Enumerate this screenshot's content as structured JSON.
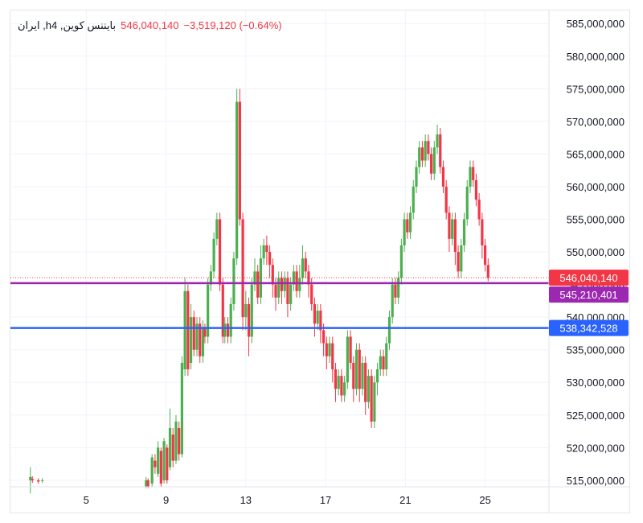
{
  "legend": {
    "symbol": "ایران ,hبایننس کوین, 4",
    "last_price": "546,040,140",
    "change": "−3,519,120 (−0.64%)"
  },
  "colors": {
    "up": "#4caf50",
    "down": "#f23645",
    "purple_line": "#9c27b0",
    "blue_line": "#2962ff",
    "last_price_tag": "#f23645",
    "grid": "#f0f3fa"
  },
  "chart_data": {
    "type": "candlestick",
    "y_axis": {
      "min": 514000000,
      "max": 587000000,
      "ticks": [
        515000000,
        520000000,
        525000000,
        530000000,
        535000000,
        540000000,
        545000000,
        550000000,
        555000000,
        560000000,
        565000000,
        570000000,
        575000000,
        580000000,
        585000000
      ],
      "tick_labels": [
        "515,000,000",
        "520,000,000",
        "525,000,000",
        "530,000,000",
        "535,000,000",
        "540,000,000",
        "545,000,000",
        "550,000,000",
        "555,000,000",
        "560,000,000",
        "565,000,000",
        "570,000,000",
        "575,000,000",
        "580,000,000",
        "585,000,000"
      ]
    },
    "x_axis": {
      "min": 1.2,
      "max": 28.2,
      "ticks": [
        5,
        9,
        13,
        17,
        21,
        25
      ],
      "tick_labels": [
        "5",
        "9",
        "13",
        "17",
        "21",
        "25"
      ]
    },
    "price_lines": [
      {
        "name": "last",
        "value": 546040140,
        "label": "546,040,140",
        "color": "#f23645",
        "style": "dotted"
      },
      {
        "name": "purple",
        "value": 545210401,
        "label": "545,210,401",
        "color": "#9c27b0",
        "style": "solid"
      },
      {
        "name": "blue",
        "value": 538342528,
        "label": "538,342,528",
        "color": "#2962ff",
        "style": "solid"
      }
    ],
    "candles": [
      [
        2.2,
        515.0,
        515.5,
        513.0,
        517.0
      ],
      [
        2.3,
        515.2,
        515.0,
        514.6,
        515.6
      ],
      [
        2.6,
        515.0,
        514.8,
        514.5,
        515.3
      ],
      [
        2.8,
        514.9,
        515.0,
        514.6,
        515.3
      ],
      [
        8.0,
        514.0,
        515.0,
        513.8,
        515.5
      ],
      [
        8.1,
        515.0,
        514.0,
        513.8,
        515.3
      ],
      [
        8.3,
        514.5,
        518.5,
        514.0,
        519.0
      ],
      [
        8.45,
        518.0,
        517.0,
        516.0,
        519.0
      ],
      [
        8.6,
        516.0,
        520.0,
        515.5,
        521.0
      ],
      [
        8.75,
        519.5,
        514.5,
        514.0,
        520.0
      ],
      [
        8.9,
        515.0,
        521.0,
        514.5,
        521.5
      ],
      [
        9.05,
        520.0,
        515.0,
        514.5,
        520.5
      ],
      [
        9.2,
        517.0,
        523.0,
        516.5,
        526.0
      ],
      [
        9.35,
        522.0,
        518.0,
        517.0,
        523.0
      ],
      [
        9.5,
        518.0,
        524.0,
        517.5,
        525.0
      ],
      [
        9.65,
        523.0,
        519.0,
        518.0,
        524.0
      ],
      [
        9.8,
        519.0,
        533.0,
        518.5,
        534.0
      ],
      [
        9.95,
        532.0,
        544.0,
        531.0,
        546.0
      ],
      [
        10.1,
        544.0,
        532.0,
        531.0,
        545.0
      ],
      [
        10.25,
        533.0,
        540.0,
        532.0,
        542.0
      ],
      [
        10.4,
        540.0,
        535.0,
        534.0,
        541.0
      ],
      [
        10.55,
        535.0,
        539.0,
        534.0,
        540.0
      ],
      [
        10.7,
        539.0,
        534.0,
        533.0,
        540.0
      ],
      [
        10.85,
        534.0,
        538.5,
        533.0,
        539.5
      ],
      [
        10.95,
        538.5,
        537.0,
        536.0,
        539.0
      ],
      [
        11.1,
        537.0,
        545.0,
        536.0,
        546.0
      ],
      [
        11.25,
        545.0,
        547.0,
        544.0,
        548.0
      ],
      [
        11.4,
        547.0,
        552.0,
        546.0,
        553.0
      ],
      [
        11.55,
        552.0,
        555.0,
        551.0,
        556.0
      ],
      [
        11.7,
        555.0,
        545.0,
        544.0,
        556.0
      ],
      [
        11.85,
        545.0,
        537.0,
        536.0,
        546.0
      ],
      [
        11.95,
        537.0,
        539.0,
        536.0,
        540.0
      ],
      [
        12.1,
        539.0,
        537.0,
        536.0,
        540.0
      ],
      [
        12.25,
        537.0,
        542.0,
        536.0,
        543.0
      ],
      [
        12.4,
        542.0,
        549.0,
        541.0,
        550.0
      ],
      [
        12.55,
        549.0,
        573.0,
        548.0,
        575.0
      ],
      [
        12.7,
        573.0,
        555.0,
        554.0,
        575.0
      ],
      [
        12.85,
        555.0,
        540.0,
        538.0,
        556.0
      ],
      [
        13.0,
        540.0,
        542.0,
        538.0,
        544.0
      ],
      [
        13.15,
        542.0,
        537.0,
        534.0,
        543.0
      ],
      [
        13.3,
        537.0,
        545.0,
        536.0,
        546.0
      ],
      [
        13.45,
        545.0,
        547.0,
        544.0,
        549.0
      ],
      [
        13.6,
        547.0,
        543.0,
        542.0,
        548.0
      ],
      [
        13.75,
        543.0,
        549.0,
        542.0,
        551.0
      ],
      [
        13.9,
        549.0,
        551.0,
        548.0,
        552.0
      ],
      [
        14.05,
        551.0,
        550.0,
        548.0,
        552.5
      ],
      [
        14.2,
        550.0,
        548.0,
        546.0,
        551.0
      ],
      [
        14.35,
        548.0,
        545.0,
        543.0,
        549.0
      ],
      [
        14.5,
        545.0,
        543.0,
        541.0,
        546.0
      ],
      [
        14.65,
        543.0,
        546.0,
        542.0,
        547.0
      ],
      [
        14.8,
        546.0,
        544.0,
        542.0,
        547.0
      ],
      [
        14.95,
        544.0,
        546.0,
        543.0,
        547.0
      ],
      [
        15.1,
        546.0,
        542.0,
        540.0,
        547.0
      ],
      [
        15.25,
        542.0,
        545.0,
        541.0,
        546.0
      ],
      [
        15.4,
        545.0,
        547.0,
        544.0,
        548.0
      ],
      [
        15.55,
        547.0,
        544.0,
        543.0,
        548.0
      ],
      [
        15.7,
        544.0,
        546.0,
        543.0,
        548.0
      ],
      [
        15.85,
        546.0,
        549.0,
        545.0,
        551.0
      ],
      [
        16.0,
        549.0,
        547.0,
        546.0,
        550.0
      ],
      [
        16.15,
        547.0,
        545.0,
        543.0,
        548.0
      ],
      [
        16.3,
        545.0,
        542.0,
        541.0,
        546.0
      ],
      [
        16.45,
        542.0,
        539.0,
        537.0,
        543.0
      ],
      [
        16.6,
        539.0,
        541.0,
        538.0,
        542.0
      ],
      [
        16.75,
        541.0,
        538.0,
        536.0,
        542.0
      ],
      [
        16.9,
        538.0,
        536.0,
        534.0,
        539.0
      ],
      [
        17.05,
        536.0,
        534.0,
        532.0,
        537.0
      ],
      [
        17.2,
        534.0,
        536.0,
        533.0,
        537.0
      ],
      [
        17.35,
        536.0,
        532.0,
        530.0,
        537.0
      ],
      [
        17.5,
        532.0,
        529.0,
        527.0,
        533.0
      ],
      [
        17.65,
        529.0,
        531.0,
        528.0,
        532.0
      ],
      [
        17.8,
        531.0,
        528.0,
        527.0,
        532.0
      ],
      [
        17.95,
        528.0,
        530.0,
        527.0,
        531.0
      ],
      [
        18.1,
        530.0,
        537.0,
        529.0,
        538.0
      ],
      [
        18.25,
        537.0,
        533.0,
        532.0,
        538.0
      ],
      [
        18.4,
        533.0,
        529.0,
        527.0,
        534.0
      ],
      [
        18.55,
        529.0,
        535.0,
        528.0,
        536.0
      ],
      [
        18.7,
        535.0,
        529.0,
        527.0,
        536.0
      ],
      [
        18.85,
        529.0,
        533.0,
        528.0,
        534.0
      ],
      [
        19.0,
        533.0,
        527.0,
        525.0,
        534.0
      ],
      [
        19.15,
        527.0,
        531.0,
        526.0,
        532.0
      ],
      [
        19.3,
        531.0,
        524.0,
        523.0,
        532.0
      ],
      [
        19.45,
        524.0,
        530.0,
        523.0,
        531.0
      ],
      [
        19.6,
        530.0,
        532.0,
        528.0,
        533.0
      ],
      [
        19.75,
        532.0,
        534.0,
        531.0,
        535.0
      ],
      [
        19.9,
        534.0,
        532.0,
        531.0,
        535.0
      ],
      [
        20.05,
        532.0,
        536.0,
        531.0,
        537.0
      ],
      [
        20.2,
        536.0,
        540.0,
        535.0,
        541.0
      ],
      [
        20.35,
        540.0,
        545.0,
        539.0,
        546.0
      ],
      [
        20.5,
        545.0,
        543.0,
        542.0,
        546.0
      ],
      [
        20.65,
        543.0,
        546.0,
        542.0,
        547.0
      ],
      [
        20.8,
        546.0,
        551.0,
        545.0,
        552.0
      ],
      [
        20.95,
        551.0,
        555.0,
        550.0,
        556.0
      ],
      [
        21.1,
        555.0,
        553.0,
        552.0,
        556.0
      ],
      [
        21.25,
        553.0,
        556.0,
        552.0,
        557.0
      ],
      [
        21.4,
        556.0,
        560.0,
        555.0,
        561.0
      ],
      [
        21.55,
        560.0,
        563.0,
        559.0,
        564.0
      ],
      [
        21.7,
        563.0,
        566.0,
        562.0,
        567.0
      ],
      [
        21.85,
        566.0,
        564.0,
        563.0,
        567.0
      ],
      [
        22.0,
        564.0,
        567.0,
        563.0,
        568.0
      ],
      [
        22.15,
        567.0,
        565.0,
        564.0,
        568.0
      ],
      [
        22.3,
        565.0,
        562.0,
        561.0,
        566.0
      ],
      [
        22.45,
        562.0,
        566.0,
        561.0,
        567.0
      ],
      [
        22.6,
        566.0,
        568.0,
        565.0,
        569.5
      ],
      [
        22.75,
        568.0,
        563.0,
        562.0,
        569.0
      ],
      [
        22.9,
        563.0,
        560.0,
        559.0,
        564.0
      ],
      [
        23.05,
        560.0,
        556.0,
        555.0,
        561.0
      ],
      [
        23.2,
        556.0,
        552.0,
        550.0,
        557.0
      ],
      [
        23.35,
        552.0,
        555.0,
        551.0,
        556.0
      ],
      [
        23.5,
        555.0,
        550.0,
        548.0,
        556.0
      ],
      [
        23.65,
        550.0,
        547.0,
        546.0,
        551.0
      ],
      [
        23.8,
        547.0,
        551.0,
        546.0,
        552.0
      ],
      [
        23.95,
        551.0,
        555.0,
        550.0,
        556.0
      ],
      [
        24.1,
        555.0,
        560.0,
        554.0,
        561.0
      ],
      [
        24.25,
        560.0,
        563.0,
        559.0,
        564.0
      ],
      [
        24.4,
        563.0,
        561.0,
        560.0,
        564.0
      ],
      [
        24.55,
        561.0,
        558.0,
        557.0,
        562.0
      ],
      [
        24.7,
        558.0,
        555.0,
        554.0,
        559.0
      ],
      [
        24.85,
        555.0,
        551.0,
        549.0,
        556.0
      ],
      [
        25.0,
        551.0,
        548.0,
        547.0,
        552.0
      ],
      [
        25.15,
        548.0,
        546.0,
        545.5,
        549.0
      ]
    ]
  }
}
